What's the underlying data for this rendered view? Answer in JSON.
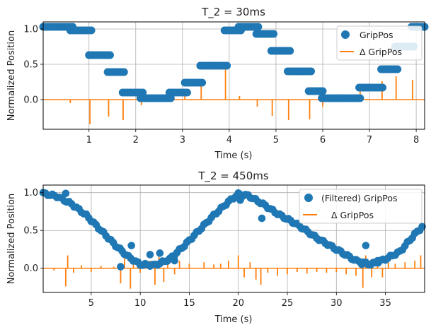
{
  "chart_data": [
    {
      "type": "scatter+line",
      "title": "T_2 = 30ms",
      "xlabel": "Time (s)",
      "ylabel": "Normalized Position",
      "xlim": [
        0.02,
        8.18
      ],
      "ylim": [
        -0.42,
        1.1
      ],
      "xticks": [
        1,
        2,
        3,
        4,
        5,
        6,
        7,
        8
      ],
      "yticks": [
        0.0,
        0.5,
        1.0
      ],
      "xtick_labels": [
        "1",
        "2",
        "3",
        "4",
        "5",
        "6",
        "7",
        "8"
      ],
      "ytick_labels": [
        "0.0",
        "0.5",
        "1.0"
      ],
      "grid": true,
      "legend_position": "top-right",
      "series": [
        {
          "name": "GripPos",
          "kind": "scatter",
          "color": "#1f77b4",
          "segments": [
            {
              "x_start": 0.02,
              "x_end": 0.65,
              "y": 1.03
            },
            {
              "x_start": 0.6,
              "x_end": 1.05,
              "y": 0.98
            },
            {
              "x_start": 1.0,
              "x_end": 1.45,
              "y": 0.63
            },
            {
              "x_start": 1.4,
              "x_end": 1.75,
              "y": 0.39
            },
            {
              "x_start": 1.72,
              "x_end": 2.15,
              "y": 0.1
            },
            {
              "x_start": 2.1,
              "x_end": 2.75,
              "y": 0.02
            },
            {
              "x_start": 2.72,
              "x_end": 3.1,
              "y": 0.1
            },
            {
              "x_start": 3.05,
              "x_end": 3.42,
              "y": 0.24
            },
            {
              "x_start": 3.38,
              "x_end": 3.95,
              "y": 0.48
            },
            {
              "x_start": 3.9,
              "x_end": 4.25,
              "y": 0.98
            },
            {
              "x_start": 4.2,
              "x_end": 4.62,
              "y": 1.03
            },
            {
              "x_start": 4.58,
              "x_end": 4.95,
              "y": 0.93
            },
            {
              "x_start": 4.9,
              "x_end": 5.3,
              "y": 0.69
            },
            {
              "x_start": 5.25,
              "x_end": 5.75,
              "y": 0.4
            },
            {
              "x_start": 5.7,
              "x_end": 6.0,
              "y": 0.12
            },
            {
              "x_start": 5.98,
              "x_end": 6.8,
              "y": 0.02
            },
            {
              "x_start": 6.78,
              "x_end": 7.28,
              "y": 0.17
            },
            {
              "x_start": 7.25,
              "x_end": 7.6,
              "y": 0.43
            },
            {
              "x_start": 7.55,
              "x_end": 7.95,
              "y": 0.75
            },
            {
              "x_start": 7.9,
              "x_end": 8.18,
              "y": 1.03
            }
          ]
        },
        {
          "name": "Δ GripPos",
          "kind": "line",
          "color": "#ff7f0e",
          "spikes": [
            {
              "x": 0.6,
              "y": -0.05
            },
            {
              "x": 1.02,
              "y": -0.35
            },
            {
              "x": 1.42,
              "y": -0.24
            },
            {
              "x": 1.73,
              "y": -0.29
            },
            {
              "x": 2.12,
              "y": -0.08
            },
            {
              "x": 2.72,
              "y": 0.08
            },
            {
              "x": 3.05,
              "y": 0.14
            },
            {
              "x": 3.4,
              "y": 0.24
            },
            {
              "x": 3.92,
              "y": 0.5
            },
            {
              "x": 4.22,
              "y": 0.05
            },
            {
              "x": 4.6,
              "y": -0.1
            },
            {
              "x": 4.92,
              "y": -0.23
            },
            {
              "x": 5.27,
              "y": -0.29
            },
            {
              "x": 5.72,
              "y": -0.28
            },
            {
              "x": 6.0,
              "y": -0.1
            },
            {
              "x": 6.8,
              "y": 0.15
            },
            {
              "x": 7.27,
              "y": 0.26
            },
            {
              "x": 7.57,
              "y": 0.33
            },
            {
              "x": 7.92,
              "y": 0.28
            }
          ]
        }
      ]
    },
    {
      "type": "scatter+line",
      "title": "T_2 = 450ms",
      "xlabel": "Time (s)",
      "ylabel": "Normalized Position",
      "xlim": [
        0.1,
        39.0
      ],
      "ylim": [
        -0.32,
        1.1
      ],
      "xticks": [
        5,
        10,
        15,
        20,
        25,
        30,
        35
      ],
      "yticks": [
        0.0,
        0.5,
        1.0
      ],
      "xtick_labels": [
        "5",
        "10",
        "15",
        "20",
        "25",
        "30",
        "35"
      ],
      "ytick_labels": [
        "0.0",
        "0.5",
        "1.0"
      ],
      "grid": true,
      "legend_position": "top-right",
      "series": [
        {
          "name": "(Filtered) GripPos",
          "kind": "scatter",
          "color": "#1f77b4",
          "curve": [
            [
              0.1,
              0.99
            ],
            [
              1.5,
              0.95
            ],
            [
              3,
              0.85
            ],
            [
              4.5,
              0.7
            ],
            [
              6,
              0.5
            ],
            [
              7.5,
              0.3
            ],
            [
              8.8,
              0.15
            ],
            [
              10,
              0.05
            ],
            [
              11.5,
              0.04
            ],
            [
              13,
              0.12
            ],
            [
              14.5,
              0.3
            ],
            [
              16,
              0.5
            ],
            [
              17.5,
              0.7
            ],
            [
              19,
              0.88
            ],
            [
              20,
              0.98
            ],
            [
              21,
              0.96
            ],
            [
              22.5,
              0.85
            ],
            [
              24,
              0.72
            ],
            [
              26,
              0.58
            ],
            [
              28,
              0.4
            ],
            [
              30,
              0.25
            ],
            [
              32,
              0.1
            ],
            [
              33.5,
              0.05
            ],
            [
              35,
              0.12
            ],
            [
              36.5,
              0.22
            ],
            [
              38,
              0.45
            ],
            [
              39.0,
              0.58
            ]
          ],
          "outliers": [
            [
              2.4,
              0.99
            ],
            [
              8.0,
              0.02
            ],
            [
              9.1,
              0.3
            ],
            [
              11.0,
              0.18
            ],
            [
              12.0,
              0.2
            ],
            [
              13.5,
              0.1
            ],
            [
              22.4,
              0.66
            ],
            [
              32.6,
              0.05
            ],
            [
              33.0,
              0.3
            ],
            [
              34.2,
              0.1
            ],
            [
              20.2,
              0.9
            ]
          ]
        },
        {
          "name": "Δ GripPos",
          "kind": "line",
          "color": "#ff7f0e",
          "spikes": [
            {
              "x": 1.2,
              "y": -0.03
            },
            {
              "x": 2.4,
              "y": -0.24
            },
            {
              "x": 2.6,
              "y": 0.17
            },
            {
              "x": 3.2,
              "y": -0.06
            },
            {
              "x": 4.0,
              "y": 0.04
            },
            {
              "x": 5.0,
              "y": -0.05
            },
            {
              "x": 6.0,
              "y": 0.03
            },
            {
              "x": 7.3,
              "y": 0.02
            },
            {
              "x": 8.0,
              "y": -0.2
            },
            {
              "x": 8.4,
              "y": 0.14
            },
            {
              "x": 9.0,
              "y": -0.27
            },
            {
              "x": 9.3,
              "y": 0.12
            },
            {
              "x": 10.0,
              "y": -0.06
            },
            {
              "x": 11.0,
              "y": 0.1
            },
            {
              "x": 11.5,
              "y": -0.22
            },
            {
              "x": 11.9,
              "y": 0.2
            },
            {
              "x": 12.4,
              "y": -0.18
            },
            {
              "x": 12.8,
              "y": 0.12
            },
            {
              "x": 13.5,
              "y": -0.08
            },
            {
              "x": 14.0,
              "y": 0.1
            },
            {
              "x": 15.0,
              "y": 0.06
            },
            {
              "x": 16.5,
              "y": 0.08
            },
            {
              "x": 17.5,
              "y": 0.05
            },
            {
              "x": 18.2,
              "y": 0.06
            },
            {
              "x": 19.0,
              "y": 0.1
            },
            {
              "x": 20.0,
              "y": 0.17
            },
            {
              "x": 20.6,
              "y": -0.12
            },
            {
              "x": 21.2,
              "y": 0.08
            },
            {
              "x": 21.8,
              "y": -0.15
            },
            {
              "x": 22.3,
              "y": -0.22
            },
            {
              "x": 23.0,
              "y": -0.06
            },
            {
              "x": 24.0,
              "y": -0.1
            },
            {
              "x": 25.0,
              "y": -0.08
            },
            {
              "x": 26.0,
              "y": -0.05
            },
            {
              "x": 27.0,
              "y": -0.07
            },
            {
              "x": 28.0,
              "y": -0.05
            },
            {
              "x": 29.0,
              "y": -0.06
            },
            {
              "x": 30.0,
              "y": -0.05
            },
            {
              "x": 31.0,
              "y": -0.08
            },
            {
              "x": 32.0,
              "y": -0.1
            },
            {
              "x": 32.7,
              "y": -0.26
            },
            {
              "x": 33.0,
              "y": 0.17
            },
            {
              "x": 33.6,
              "y": -0.12
            },
            {
              "x": 34.2,
              "y": 0.1
            },
            {
              "x": 34.7,
              "y": -0.12
            },
            {
              "x": 35.3,
              "y": 0.08
            },
            {
              "x": 36.0,
              "y": 0.06
            },
            {
              "x": 37.0,
              "y": 0.08
            },
            {
              "x": 38.0,
              "y": 0.1
            },
            {
              "x": 38.6,
              "y": 0.17
            }
          ]
        }
      ]
    }
  ]
}
